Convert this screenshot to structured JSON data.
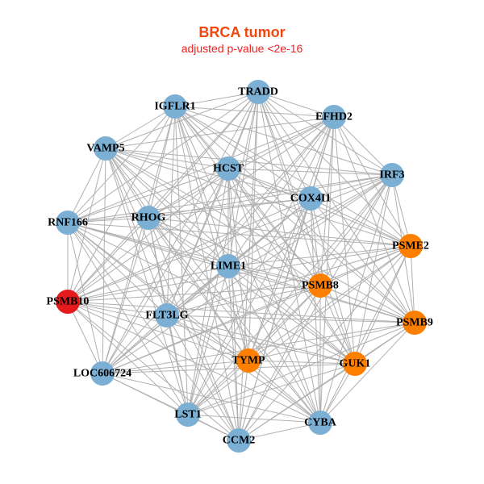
{
  "title": "BRCA tumor",
  "subtitle": "adjusted p-value <2e-16",
  "colors": {
    "blue": "#7BAFD4",
    "orange": "#FF7F00",
    "red": "#E41A1C",
    "edge": "#B0B0B0"
  },
  "nodes": [
    {
      "id": "TRADD",
      "group": "blue"
    },
    {
      "id": "IGFLR1",
      "group": "blue"
    },
    {
      "id": "EFHD2",
      "group": "blue"
    },
    {
      "id": "VAMP5",
      "group": "blue"
    },
    {
      "id": "HCST",
      "group": "blue"
    },
    {
      "id": "IRF3",
      "group": "blue"
    },
    {
      "id": "COX4I1",
      "group": "blue"
    },
    {
      "id": "RHOG",
      "group": "blue"
    },
    {
      "id": "RNF166",
      "group": "blue"
    },
    {
      "id": "PSME2",
      "group": "orange"
    },
    {
      "id": "LIME1",
      "group": "blue"
    },
    {
      "id": "PSMB8",
      "group": "orange"
    },
    {
      "id": "PSMB10",
      "group": "red"
    },
    {
      "id": "FLT3LG",
      "group": "blue"
    },
    {
      "id": "PSMB9",
      "group": "orange"
    },
    {
      "id": "TYMP",
      "group": "orange"
    },
    {
      "id": "GUK1",
      "group": "orange"
    },
    {
      "id": "LOC606724",
      "group": "blue"
    },
    {
      "id": "LST1",
      "group": "blue"
    },
    {
      "id": "CYBA",
      "group": "blue"
    },
    {
      "id": "CCM2",
      "group": "blue"
    }
  ],
  "edges": "all-pairs"
}
